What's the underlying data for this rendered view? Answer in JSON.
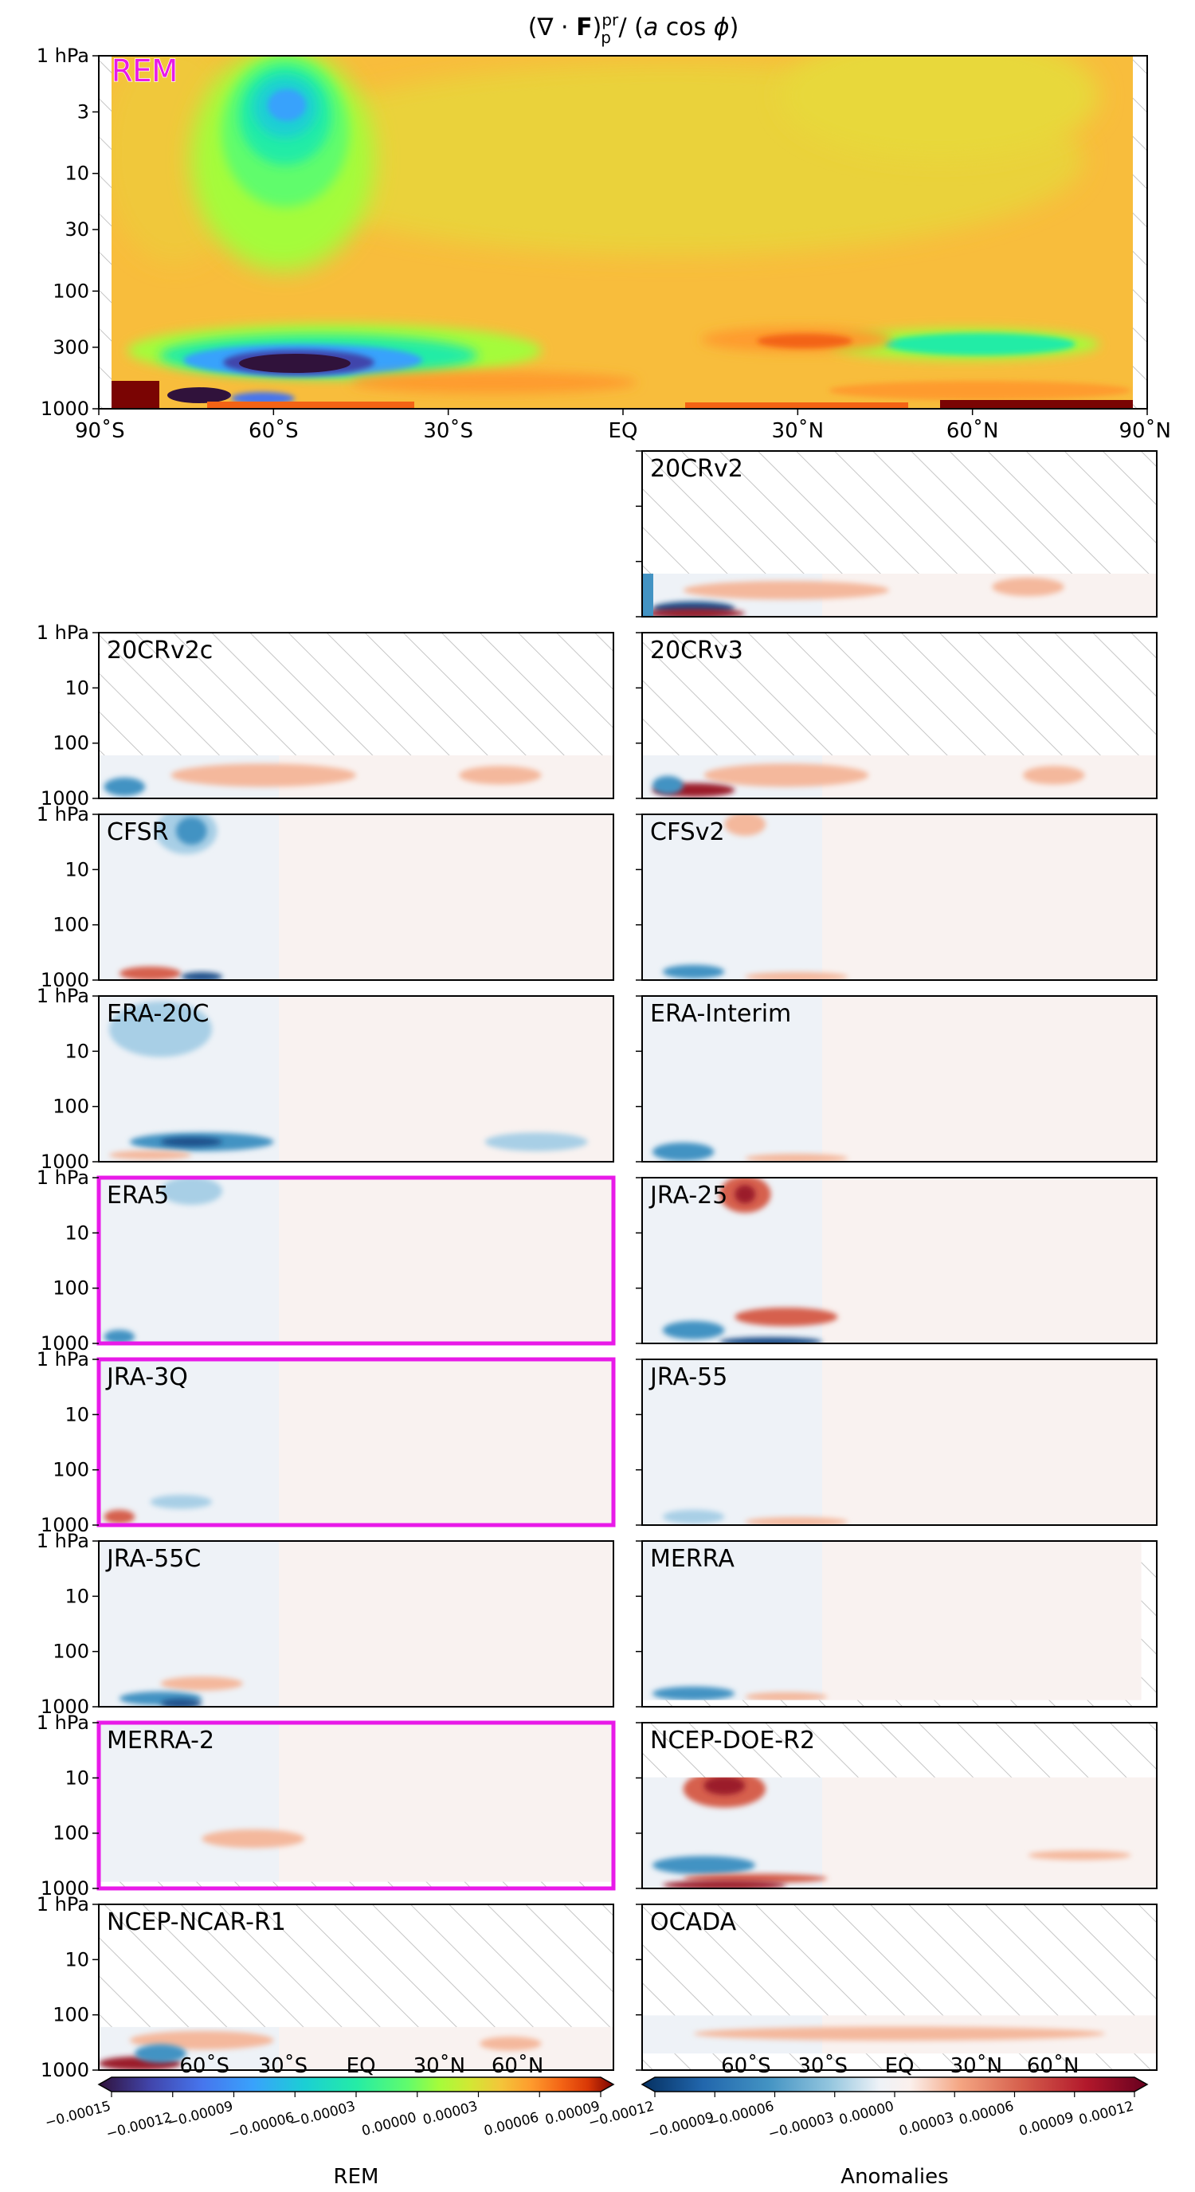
{
  "figure": {
    "title": "(∇ · F)ᵖʳₚ / (a cos ϕ)",
    "y_axis": {
      "scale": "log-pressure",
      "range_hPa": [
        1000,
        1
      ],
      "main_ticks": [
        "1 hPa",
        "3",
        "10",
        "30",
        "100",
        "300",
        "1000"
      ],
      "small_ticks": [
        "1 hPa",
        "10",
        "100",
        "1000"
      ]
    },
    "x_axis": {
      "range_deg": [
        -90,
        90
      ],
      "main_ticks": [
        "90˚S",
        "60˚S",
        "30˚S",
        "EQ",
        "30˚N",
        "60˚N",
        "90˚N"
      ]
    },
    "highlight_color": "#e81ae8",
    "missing_data_pattern": "diagonal-hatch"
  },
  "chart_data": [
    {
      "type": "heatmap",
      "panel": "REM",
      "role": "reference-mean",
      "colormap": "turbo",
      "note_features": [
        {
          "name": "upper-strat minimum",
          "lat": -60,
          "p_hPa": 3,
          "sign": "negative"
        },
        {
          "name": "SH midlat tropospheric minimum",
          "lat": -60,
          "p_hPa": 500,
          "sign": "strong-negative"
        },
        {
          "name": "NH midlat tropospheric minimum",
          "lat": 60,
          "p_hPa": 400,
          "sign": "negative"
        },
        {
          "name": "NH subtropical maximum",
          "lat": 25,
          "p_hPa": 400,
          "sign": "positive"
        },
        {
          "name": "surface maximum",
          "lat": 75,
          "p_hPa": 1000,
          "sign": "strong-positive"
        }
      ]
    },
    {
      "type": "heatmap",
      "role": "anomalies",
      "colormap": "RdBu_r",
      "panels": [
        {
          "name": "20CRv2",
          "highlight": false
        },
        {
          "name": "20CRv2c",
          "highlight": false
        },
        {
          "name": "20CRv3",
          "highlight": false
        },
        {
          "name": "CFSR",
          "highlight": false
        },
        {
          "name": "CFSv2",
          "highlight": false
        },
        {
          "name": "ERA-20C",
          "highlight": false
        },
        {
          "name": "ERA-Interim",
          "highlight": false
        },
        {
          "name": "ERA5",
          "highlight": true
        },
        {
          "name": "JRA-25",
          "highlight": false
        },
        {
          "name": "JRA-3Q",
          "highlight": true
        },
        {
          "name": "JRA-55",
          "highlight": false
        },
        {
          "name": "JRA-55C",
          "highlight": false
        },
        {
          "name": "MERRA",
          "highlight": false
        },
        {
          "name": "MERRA-2",
          "highlight": true
        },
        {
          "name": "NCEP-DOE-R2",
          "highlight": false
        },
        {
          "name": "NCEP-NCAR-R1",
          "highlight": false
        },
        {
          "name": "OCADA",
          "highlight": false
        }
      ]
    }
  ],
  "colorbars": {
    "rem": {
      "label": "REM",
      "ticks": [
        "−0.00015",
        "−0.00012",
        "−0.00009",
        "−0.00006",
        "−0.00003",
        "0.00000",
        "0.00003",
        "0.00006",
        "0.00009"
      ],
      "lat_labels": [
        "60˚S",
        "30˚S",
        "EQ",
        "30˚N",
        "60˚N"
      ]
    },
    "anomalies": {
      "label": "Anomalies",
      "ticks": [
        "−0.00012",
        "−0.00009",
        "−0.00006",
        "−0.00003",
        "0.00000",
        "0.00003",
        "0.00006",
        "0.00009",
        "0.00012"
      ],
      "lat_labels": [
        "60˚S",
        "30˚S",
        "EQ",
        "30˚N",
        "60˚N"
      ]
    }
  }
}
